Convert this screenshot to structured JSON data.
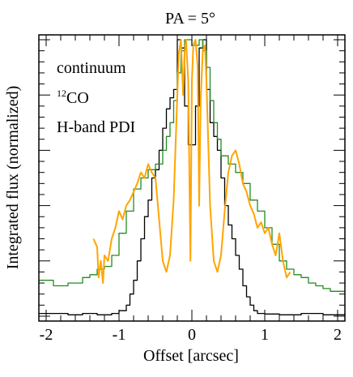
{
  "chart_data": {
    "type": "line",
    "title": "PA = 5°",
    "xlabel": "Offset [arcsec]",
    "ylabel": "Integrated flux (normalized)",
    "xlim": [
      -2.1,
      2.1
    ],
    "ylim": [
      0,
      1.0
    ],
    "x_ticks": [
      -2,
      -1,
      0,
      1,
      2
    ],
    "x_tick_labels": [
      "-2",
      "-1",
      "0",
      "1",
      "2"
    ],
    "y_tick_labels_shown": false,
    "legend_position": "top-left",
    "legend": [
      {
        "text": "continuum",
        "color": "#000000"
      },
      {
        "text_sup": "12",
        "text": "CO",
        "color": "#228b22"
      },
      {
        "text": "H-band PDI",
        "color": "#ffa500"
      }
    ],
    "series": [
      {
        "name": "continuum",
        "color": "#000000",
        "step": true,
        "x": [
          -2.1,
          -1.7,
          -1.5,
          -1.3,
          -1.1,
          -1.0,
          -0.9,
          -0.85,
          -0.8,
          -0.75,
          -0.7,
          -0.65,
          -0.6,
          -0.55,
          -0.5,
          -0.45,
          -0.4,
          -0.35,
          -0.3,
          -0.25,
          -0.2,
          -0.15,
          -0.1,
          -0.05,
          0.0,
          0.05,
          0.1,
          0.15,
          0.2,
          0.25,
          0.3,
          0.35,
          0.4,
          0.45,
          0.5,
          0.55,
          0.6,
          0.65,
          0.7,
          0.75,
          0.8,
          0.85,
          0.9,
          1.0,
          1.2,
          1.5,
          1.8,
          2.1
        ],
        "y": [
          0.01,
          0.005,
          0.01,
          0.005,
          0.01,
          0.02,
          0.04,
          0.08,
          0.13,
          0.2,
          0.28,
          0.36,
          0.42,
          0.5,
          0.53,
          0.6,
          0.68,
          0.75,
          0.79,
          0.82,
          1.0,
          0.97,
          0.76,
          0.62,
          0.62,
          0.76,
          0.97,
          1.0,
          0.82,
          0.7,
          0.65,
          0.6,
          0.5,
          0.4,
          0.33,
          0.28,
          0.22,
          0.17,
          0.11,
          0.07,
          0.04,
          0.02,
          0.01,
          0.008,
          0.005,
          0.01,
          0.005,
          0.01
        ]
      },
      {
        "name": "12CO",
        "color": "#228b22",
        "step": true,
        "x": [
          -2.1,
          -1.9,
          -1.7,
          -1.5,
          -1.4,
          -1.3,
          -1.2,
          -1.1,
          -1.0,
          -0.9,
          -0.8,
          -0.7,
          -0.6,
          -0.5,
          -0.4,
          -0.35,
          -0.3,
          -0.25,
          -0.2,
          -0.15,
          -0.1,
          0.0,
          0.1,
          0.15,
          0.2,
          0.25,
          0.3,
          0.35,
          0.4,
          0.5,
          0.6,
          0.7,
          0.8,
          0.9,
          1.0,
          1.1,
          1.2,
          1.3,
          1.4,
          1.5,
          1.6,
          1.7,
          1.8,
          1.9,
          2.0,
          2.1
        ],
        "y": [
          0.13,
          0.11,
          0.12,
          0.14,
          0.15,
          0.17,
          0.18,
          0.22,
          0.3,
          0.38,
          0.46,
          0.5,
          0.53,
          0.55,
          0.6,
          0.65,
          0.7,
          0.78,
          0.88,
          0.96,
          1.0,
          0.98,
          1.0,
          0.96,
          0.9,
          0.78,
          0.7,
          0.64,
          0.58,
          0.55,
          0.52,
          0.48,
          0.42,
          0.38,
          0.32,
          0.26,
          0.2,
          0.17,
          0.15,
          0.14,
          0.12,
          0.11,
          0.1,
          0.09,
          0.09,
          0.09
        ]
      },
      {
        "name": "H-band PDI",
        "color": "#ffa500",
        "step": false,
        "x": [
          -1.35,
          -1.3,
          -1.28,
          -1.25,
          -1.22,
          -1.2,
          -1.15,
          -1.1,
          -1.05,
          -1.0,
          -0.95,
          -0.9,
          -0.85,
          -0.8,
          -0.75,
          -0.7,
          -0.65,
          -0.6,
          -0.55,
          -0.5,
          -0.45,
          -0.4,
          -0.35,
          -0.3,
          -0.25,
          -0.2,
          -0.18,
          -0.15,
          -0.12,
          -0.1,
          -0.08,
          -0.05,
          -0.02,
          0.0,
          0.02,
          0.05,
          0.08,
          0.1,
          0.12,
          0.15,
          0.18,
          0.2,
          0.25,
          0.3,
          0.35,
          0.4,
          0.45,
          0.5,
          0.55,
          0.6,
          0.65,
          0.7,
          0.75,
          0.8,
          0.85,
          0.9,
          0.95,
          1.0,
          1.05,
          1.1,
          1.15,
          1.2,
          1.25,
          1.3,
          1.35
        ],
        "y": [
          0.28,
          0.25,
          0.14,
          0.2,
          0.12,
          0.22,
          0.2,
          0.28,
          0.32,
          0.38,
          0.35,
          0.4,
          0.42,
          0.45,
          0.48,
          0.52,
          0.5,
          0.55,
          0.52,
          0.5,
          0.35,
          0.2,
          0.16,
          0.22,
          0.42,
          0.8,
          0.95,
          1.0,
          0.8,
          0.95,
          1.0,
          0.85,
          0.2,
          0.85,
          0.98,
          1.0,
          0.9,
          0.4,
          0.78,
          0.96,
          0.98,
          0.85,
          0.4,
          0.2,
          0.16,
          0.22,
          0.38,
          0.52,
          0.58,
          0.6,
          0.55,
          0.48,
          0.45,
          0.4,
          0.37,
          0.32,
          0.34,
          0.3,
          0.32,
          0.26,
          0.22,
          0.3,
          0.2,
          0.14,
          0.16
        ]
      }
    ]
  }
}
